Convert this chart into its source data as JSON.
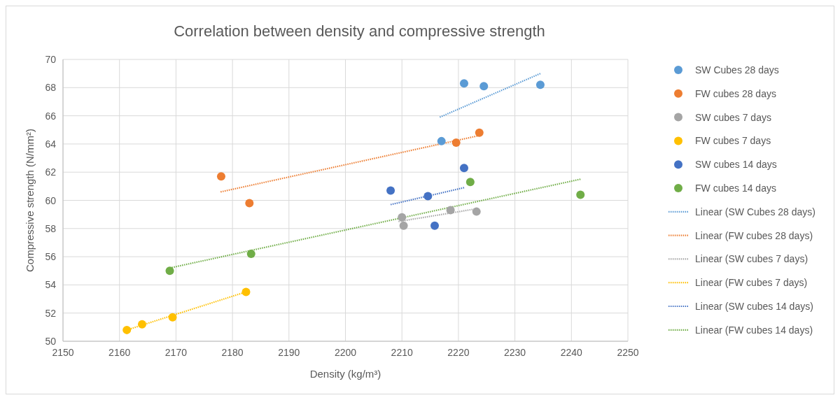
{
  "chart_data": {
    "type": "scatter",
    "title": "Correlation between density and compressive strength",
    "xlabel": "Density (kg/m³)",
    "ylabel": "Compressive strength (N/mm²)",
    "xlim": [
      2150,
      2250
    ],
    "xticks": [
      2150,
      2160,
      2170,
      2180,
      2190,
      2200,
      2210,
      2220,
      2230,
      2240,
      2250
    ],
    "ylim": [
      50,
      70
    ],
    "yticks": [
      50,
      52,
      54,
      56,
      58,
      60,
      62,
      64,
      66,
      68,
      70
    ],
    "grid": true,
    "legend": "right",
    "marker": "circle",
    "series": [
      {
        "name": "SW Cubes 28 days",
        "color": "#5b9bd5",
        "x": [
          2221.0,
          2224.5,
          2234.5,
          2217.0
        ],
        "values": [
          68.3,
          68.1,
          68.2,
          64.2
        ]
      },
      {
        "name": "FW cubes 28 days",
        "color": "#ed7d31",
        "x": [
          2178.0,
          2183.0,
          2219.6,
          2223.7
        ],
        "values": [
          61.7,
          59.8,
          64.1,
          64.8
        ]
      },
      {
        "name": "SW cubes 7 days",
        "color": "#a5a5a5",
        "x": [
          2210.0,
          2210.3,
          2218.6,
          2223.2
        ],
        "values": [
          58.8,
          58.2,
          59.3,
          59.2
        ]
      },
      {
        "name": "FW cubes 7 days",
        "color": "#ffc000",
        "x": [
          2161.3,
          2164.0,
          2169.4,
          2182.4
        ],
        "values": [
          50.8,
          51.2,
          51.7,
          53.5
        ]
      },
      {
        "name": "SW cubes 14 days",
        "color": "#4472c4",
        "x": [
          2208.0,
          2214.6,
          2215.8,
          2221.0
        ],
        "values": [
          60.7,
          60.3,
          58.2,
          62.3
        ]
      },
      {
        "name": "FW cubes 14 days",
        "color": "#70ad47",
        "x": [
          2168.9,
          2183.3,
          2222.1,
          2241.6
        ],
        "values": [
          55.0,
          56.2,
          61.3,
          60.4
        ]
      },
      {
        "name": "Linear (SW Cubes 28 days)",
        "type": "line",
        "marker": "none",
        "line_style": "dotted",
        "color": "#5b9bd5",
        "x": [
          2216.7,
          2234.5
        ],
        "values": [
          65.9,
          69.0
        ]
      },
      {
        "name": "Linear (FW cubes 28 days)",
        "type": "line",
        "marker": "none",
        "line_style": "dotted",
        "color": "#ed7d31",
        "x": [
          2177.9,
          2223.7
        ],
        "values": [
          60.6,
          64.6
        ]
      },
      {
        "name": "Linear (SW cubes 7 days)",
        "type": "line",
        "marker": "none",
        "line_style": "dotted",
        "color": "#a5a5a5",
        "x": [
          2209.4,
          2223.2
        ],
        "values": [
          58.5,
          59.4
        ]
      },
      {
        "name": "Linear (FW cubes 7 days)",
        "type": "line",
        "marker": "none",
        "line_style": "dotted",
        "color": "#ffc000",
        "x": [
          2161.3,
          2182.4
        ],
        "values": [
          50.8,
          53.5
        ]
      },
      {
        "name": "Linear (SW cubes 14 days)",
        "type": "line",
        "marker": "none",
        "line_style": "dotted",
        "color": "#4472c4",
        "x": [
          2208.0,
          2221.0
        ],
        "values": [
          59.7,
          60.9
        ]
      },
      {
        "name": "Linear (FW cubes 14 days)",
        "type": "line",
        "marker": "none",
        "line_style": "dotted",
        "color": "#70ad47",
        "x": [
          2168.9,
          2241.6
        ],
        "values": [
          55.2,
          61.5
        ]
      }
    ]
  }
}
